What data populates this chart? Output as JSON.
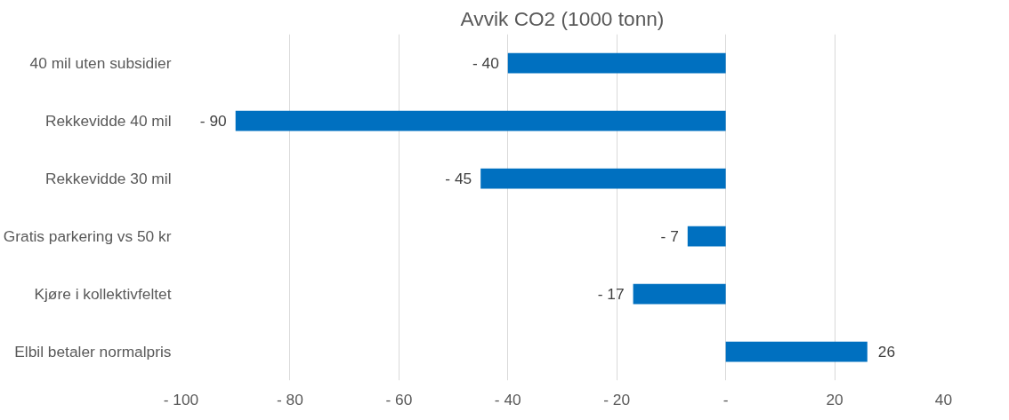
{
  "chart_data": {
    "type": "bar",
    "orientation": "horizontal",
    "title": "Avvik CO2 (1000 tonn)",
    "categories": [
      "40 mil uten subsidier",
      "Rekkevidde 40 mil",
      "Rekkevidde 30 mil",
      "Gratis parkering vs 50 kr",
      "Kjøre i kollektivfeltet",
      "Elbil betaler normalpris"
    ],
    "values": [
      -40,
      -90,
      -45,
      -7,
      -17,
      26
    ],
    "value_labels": [
      "- 40",
      "- 90",
      "- 45",
      "- 7",
      "- 17",
      "26"
    ],
    "color": "#0070c0",
    "xlim": [
      -100,
      40
    ],
    "xticks": [
      {
        "value": -100,
        "label": "- 100"
      },
      {
        "value": -80,
        "label": "- 80"
      },
      {
        "value": -60,
        "label": "- 60"
      },
      {
        "value": -40,
        "label": "- 40"
      },
      {
        "value": -20,
        "label": "- 20"
      },
      {
        "value": 0,
        "label": "-"
      },
      20,
      40
    ],
    "grid": "x"
  }
}
